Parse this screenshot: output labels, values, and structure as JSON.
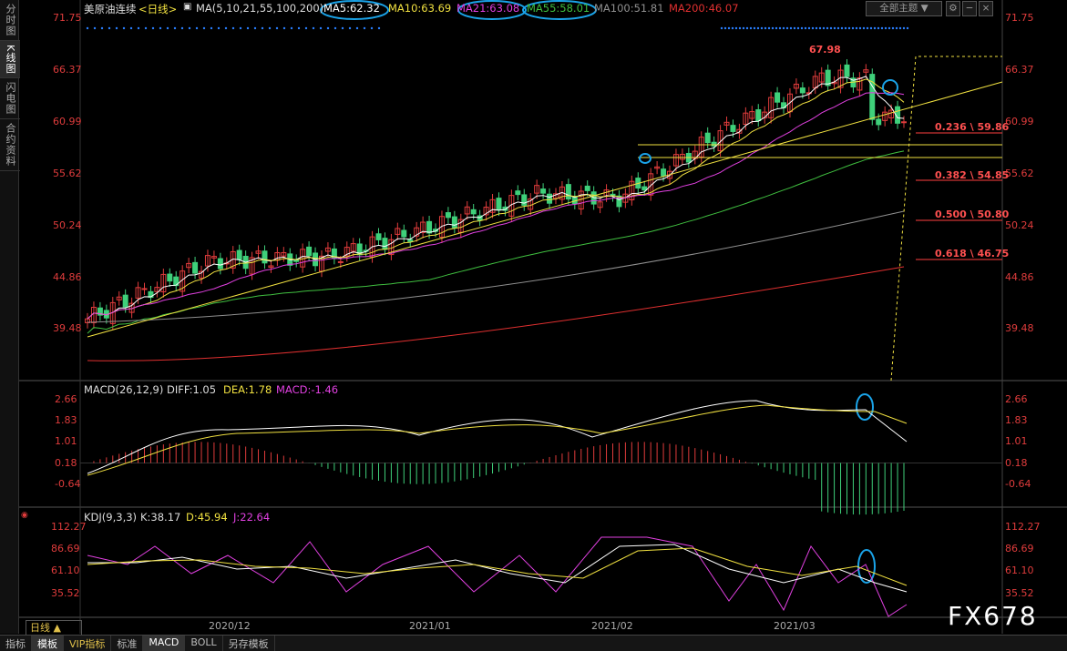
{
  "side_tabs": [
    "分时图",
    "K线图",
    "闪电图",
    "合约资料"
  ],
  "header": {
    "title": "美原油连续",
    "period": "<日线>",
    "ma_label": "MA(5,10,21,55,100,200)",
    "ma5": "MA5:62.32",
    "ma10": "MA10:63.69",
    "ma21": "MA21:63.08",
    "ma55": "MA55:58.01",
    "ma100": "MA100:51.81",
    "ma200": "MA200:46.07",
    "theme_dropdown": "全部主题"
  },
  "price_axis": [
    "71.75",
    "66.37",
    "60.99",
    "55.62",
    "50.24",
    "44.86",
    "39.48"
  ],
  "high_label": "67.98",
  "fib_levels": [
    "0.236 \\ 59.86",
    "0.382 \\ 54.85",
    "0.500 \\ 50.80",
    "0.618 \\ 46.75"
  ],
  "macd": {
    "label": "MACD(26,12,9)",
    "diff": "DIFF:1.05",
    "dea": "DEA:1.78",
    "macd": "MACD:-1.46",
    "axis": [
      "2.66",
      "1.83",
      "1.01",
      "0.18",
      "-0.64"
    ]
  },
  "kdj": {
    "label": "KDJ(9,3,3)",
    "k": "K:38.17",
    "d": "D:45.94",
    "j": "J:22.64",
    "axis": [
      "112.27",
      "86.69",
      "61.10",
      "35.52"
    ]
  },
  "dates": [
    "2020/12",
    "2021/01",
    "2021/02",
    "2021/03"
  ],
  "period_button": "日线",
  "bottom_tabs": [
    "指标",
    "模板",
    "VIP指标",
    "标准",
    "MACD",
    "BOLL",
    "另存模板"
  ],
  "watermark": "FX678",
  "colors": {
    "up": "#e03c3c",
    "down": "#3fd07a",
    "ma5": "#ffffff",
    "ma10": "#f0e040",
    "ma21": "#e040e0",
    "ma55": "#40c040",
    "ma100": "#909090",
    "ma200": "#e03030",
    "highlight": "#1aa3e8"
  }
}
